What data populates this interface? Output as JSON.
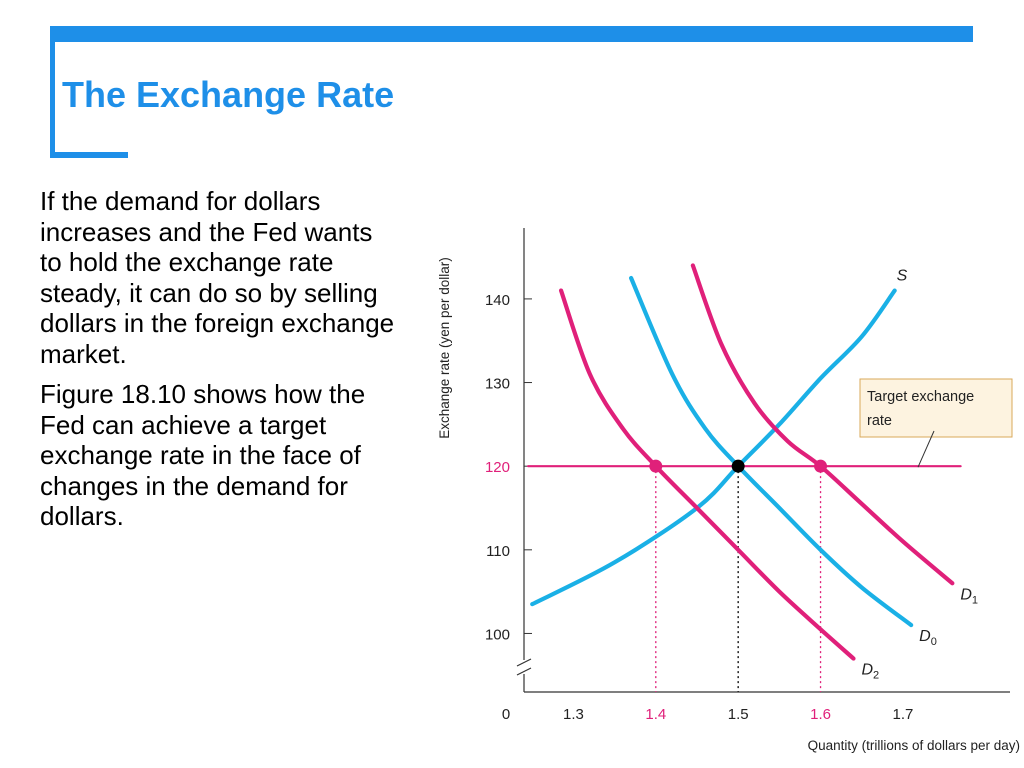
{
  "slide": {
    "title": "The Exchange Rate",
    "paragraphs": [
      "If the demand for dollars increases and the Fed wants to hold the exchange rate steady, it can do so by selling dollars in the foreign exchange market.",
      "Figure 18.10 shows how the Fed can achieve a target exchange rate in the face of changes in the demand for dollars."
    ]
  },
  "colors": {
    "accent": "#1e8fe8",
    "magenta": "#e0207a",
    "cyan": "#1ab0e6",
    "callout_bg": "#fdf3e0",
    "callout_border": "#d9a85a"
  },
  "chart_data": {
    "type": "line",
    "title": "",
    "xlabel": "Quantity (trillions of dollars per day)",
    "ylabel": "Exchange rate (yen per dollar)",
    "x_origin_label": "0",
    "x_ticks": [
      "1.3",
      "1.4",
      "1.5",
      "1.6",
      "1.7"
    ],
    "y_ticks": [
      "100",
      "110",
      "120",
      "130",
      "140"
    ],
    "xlim": [
      1.24,
      1.83
    ],
    "ylim": [
      93,
      148
    ],
    "axis_break": true,
    "series": [
      {
        "name": "S",
        "label": "S",
        "sub": "",
        "color": "#1ab0e6",
        "points": [
          [
            1.25,
            103.5
          ],
          [
            1.35,
            108.5
          ],
          [
            1.45,
            115
          ],
          [
            1.5,
            120
          ],
          [
            1.55,
            125
          ],
          [
            1.6,
            130.5
          ],
          [
            1.65,
            135.5
          ],
          [
            1.69,
            141
          ]
        ]
      },
      {
        "name": "D0",
        "label": "D",
        "sub": "0",
        "color": "#1ab0e6",
        "points": [
          [
            1.37,
            142.5
          ],
          [
            1.42,
            131
          ],
          [
            1.46,
            124.5
          ],
          [
            1.5,
            120
          ],
          [
            1.55,
            115
          ],
          [
            1.6,
            110
          ],
          [
            1.65,
            105.5
          ],
          [
            1.71,
            101
          ]
        ]
      },
      {
        "name": "D1",
        "label": "D",
        "sub": "1",
        "color": "#e0207a",
        "points": [
          [
            1.445,
            144
          ],
          [
            1.48,
            134.5
          ],
          [
            1.52,
            127.5
          ],
          [
            1.56,
            123
          ],
          [
            1.6,
            120
          ],
          [
            1.65,
            115.5
          ],
          [
            1.7,
            111
          ],
          [
            1.76,
            106
          ]
        ]
      },
      {
        "name": "D2",
        "label": "D",
        "sub": "2",
        "color": "#e0207a",
        "points": [
          [
            1.285,
            141
          ],
          [
            1.32,
            131
          ],
          [
            1.36,
            124.5
          ],
          [
            1.4,
            120
          ],
          [
            1.45,
            115
          ],
          [
            1.5,
            110
          ],
          [
            1.55,
            105
          ],
          [
            1.6,
            100.5
          ],
          [
            1.64,
            97
          ]
        ]
      },
      {
        "name": "Target exchange rate",
        "label": "",
        "sub": "",
        "color": "#e0207a",
        "points": [
          [
            1.245,
            120
          ],
          [
            1.77,
            120
          ]
        ]
      }
    ],
    "points": [
      {
        "x": 1.4,
        "y": 120,
        "color": "#e0207a"
      },
      {
        "x": 1.5,
        "y": 120,
        "color": "#000000"
      },
      {
        "x": 1.6,
        "y": 120,
        "color": "#e0207a"
      }
    ],
    "callout": {
      "lines": [
        "Target exchange",
        "rate"
      ],
      "target_y": 120
    }
  }
}
